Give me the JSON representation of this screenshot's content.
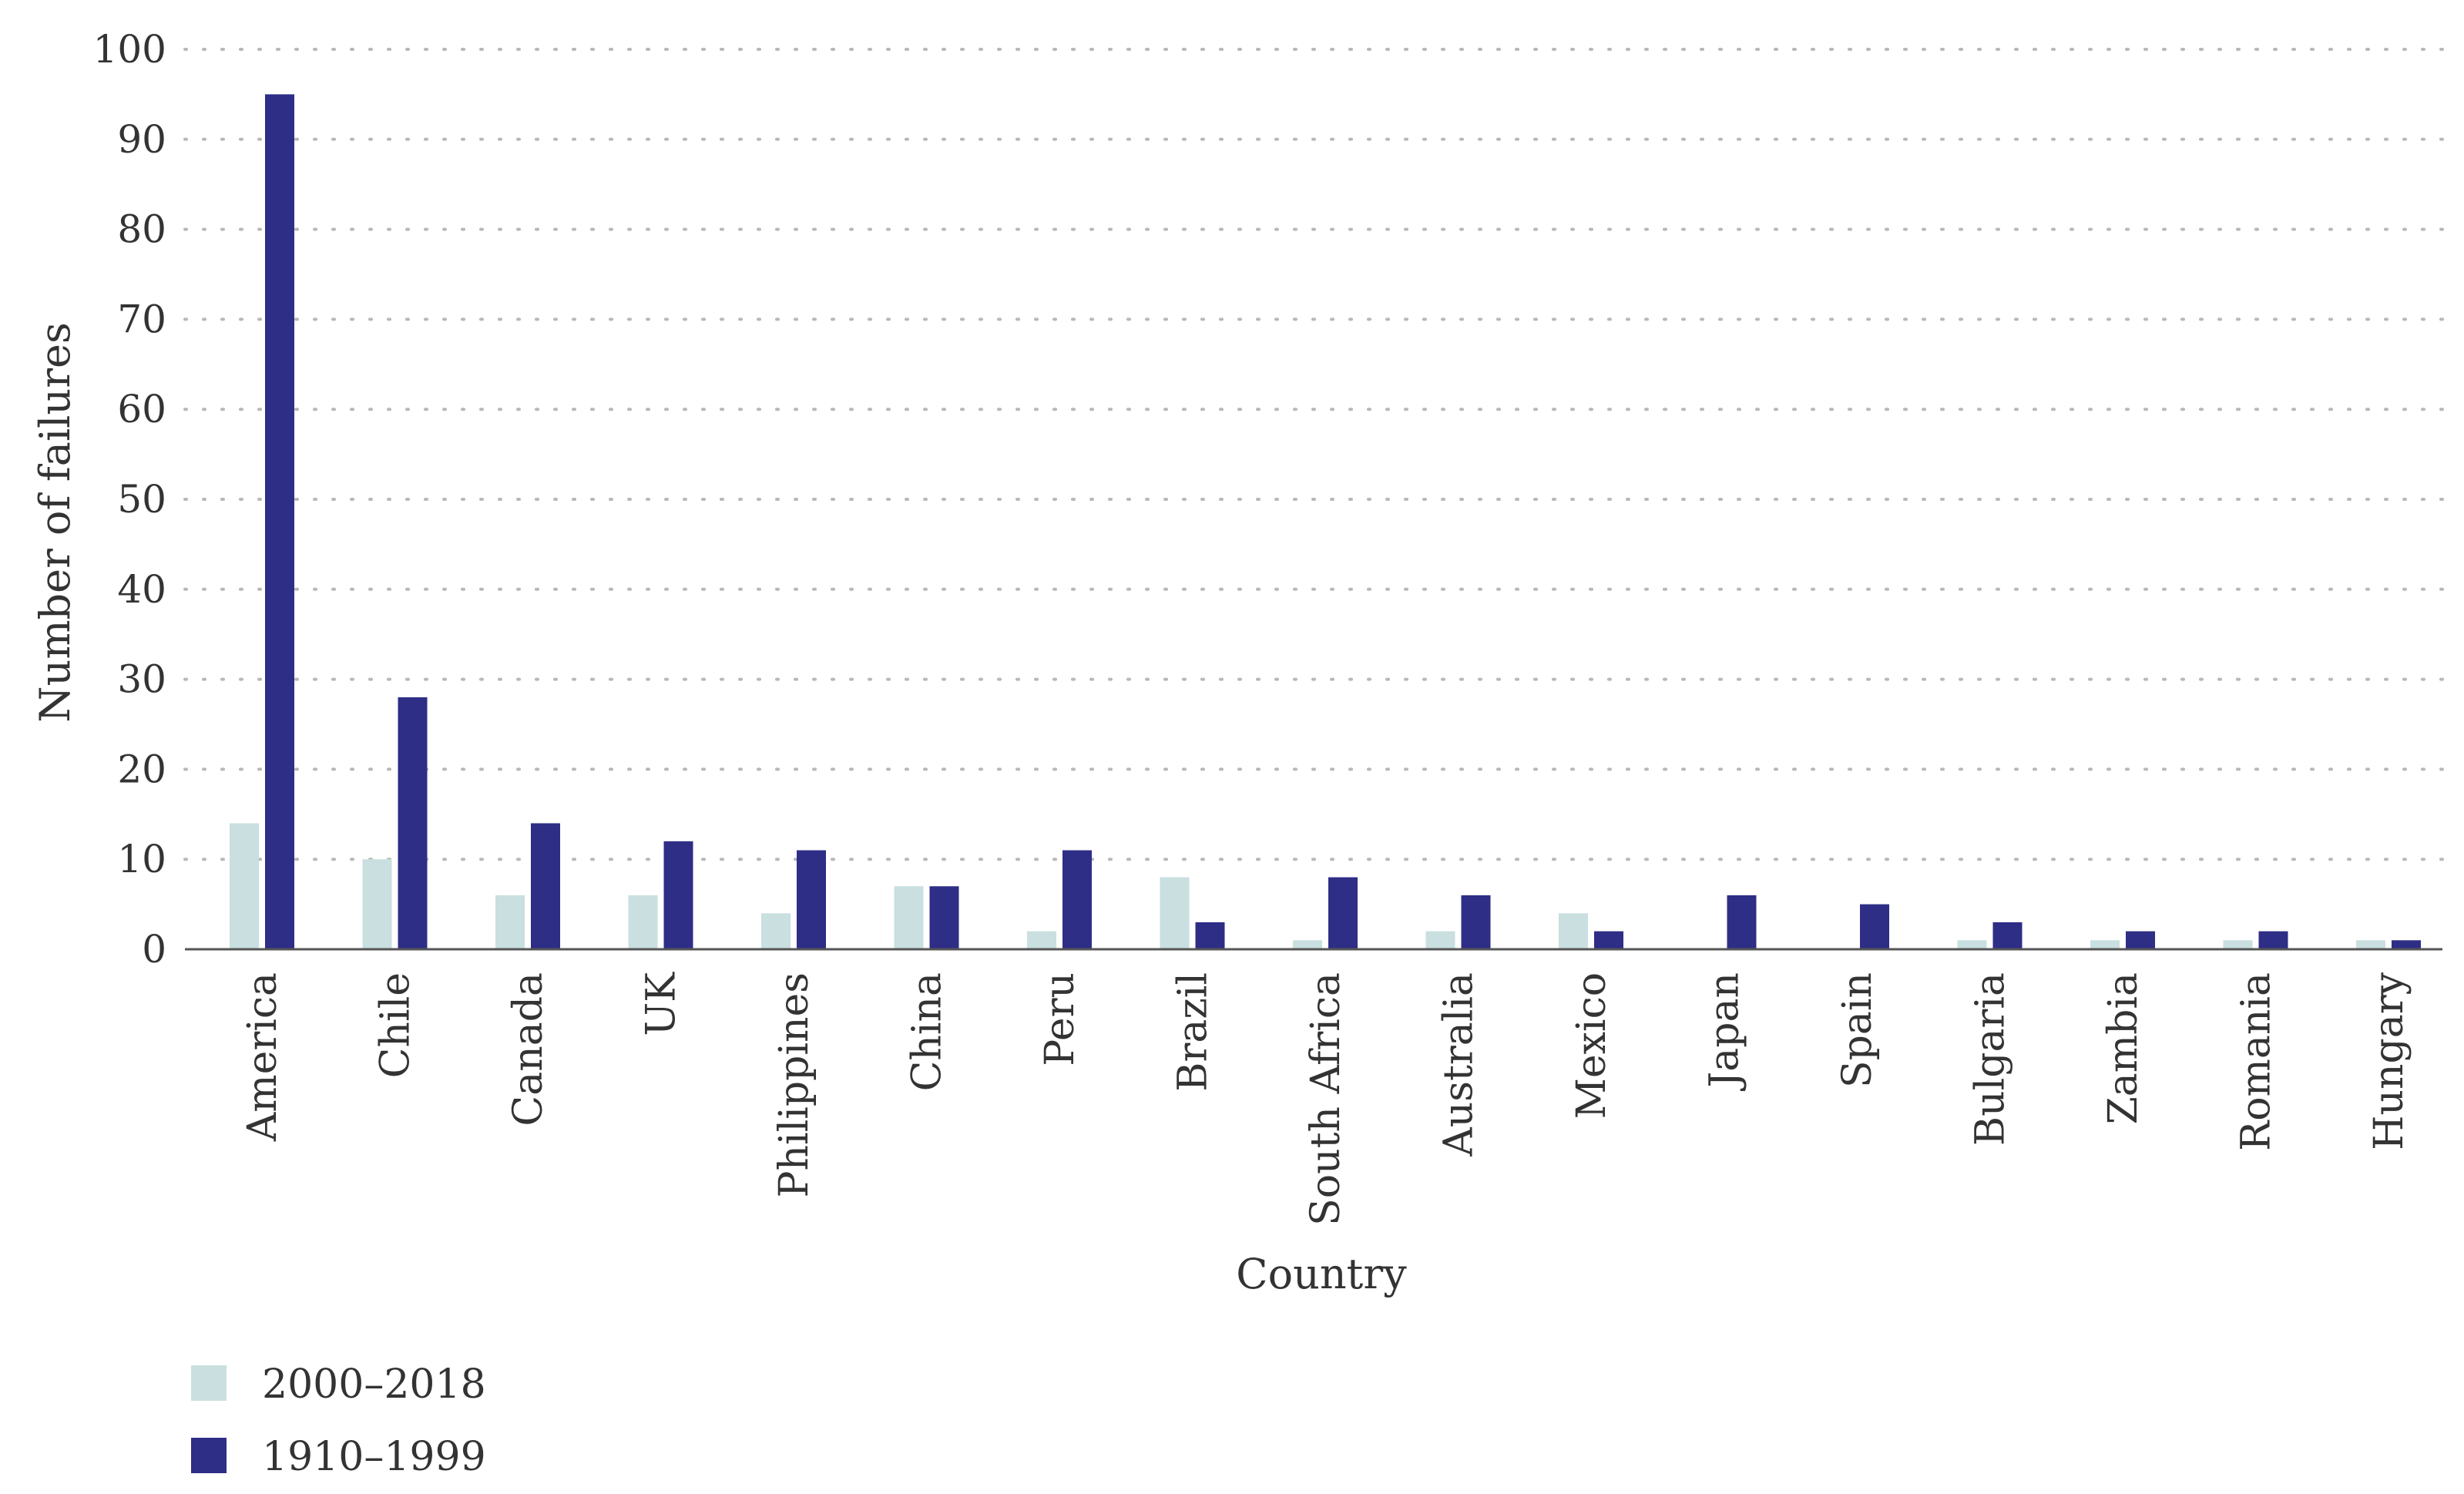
{
  "chart_data": {
    "type": "bar",
    "xlabel": "Country",
    "ylabel": "Number of failures",
    "ylim": [
      0,
      100
    ],
    "yticks": [
      0,
      10,
      20,
      30,
      40,
      50,
      60,
      70,
      80,
      90,
      100
    ],
    "grid": "horizontal dotted",
    "legend_position": "bottom-left",
    "categories": [
      "America",
      "Chile",
      "Canada",
      "UK",
      "Philippines",
      "China",
      "Peru",
      "Brazil",
      "South Africa",
      "Australia",
      "Mexico",
      "Japan",
      "Spain",
      "Bulgaria",
      "Zambia",
      "Romania",
      "Hungary"
    ],
    "series": [
      {
        "name": "2000–2018",
        "color": "#c9dfe0",
        "values": [
          14,
          10,
          6,
          6,
          4,
          7,
          2,
          8,
          1,
          2,
          4,
          0,
          0,
          1,
          1,
          1,
          1
        ]
      },
      {
        "name": "1910–1999",
        "color": "#2e2e86",
        "values": [
          95,
          28,
          14,
          12,
          11,
          7,
          11,
          3,
          8,
          6,
          2,
          6,
          5,
          3,
          2,
          2,
          1
        ]
      }
    ]
  }
}
